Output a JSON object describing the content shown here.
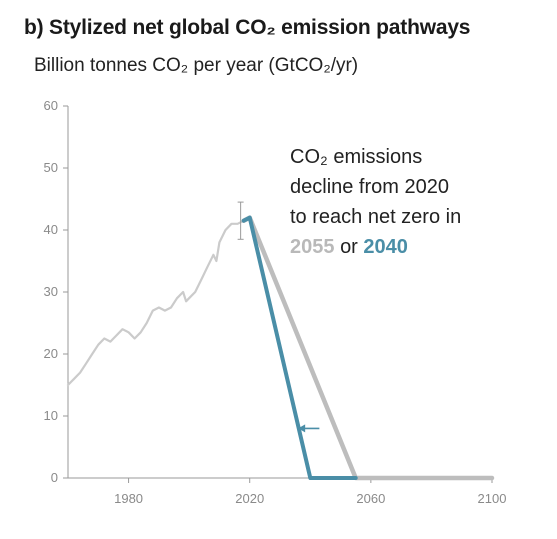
{
  "title": "b) Stylized net global CO₂ emission pathways",
  "subtitle": "Billion tonnes CO₂ per year (GtCO₂/yr)",
  "annotation": {
    "line1": "CO₂ emissions",
    "line2": "decline from 2020",
    "line3": "to reach net zero in",
    "year_a": "2055",
    "connector": "or",
    "year_b": "2040"
  },
  "colors": {
    "historical": "#cbcbcb",
    "pathway_2055": "#bdbdbd",
    "pathway_2040": "#4a8ea7",
    "axis": "#9a9a9a",
    "text": "#1a1a1a"
  },
  "chart_data": {
    "type": "line",
    "title": "b) Stylized net global CO₂ emission pathways",
    "ylabel": "Billion tonnes CO₂ per year (GtCO₂/yr)",
    "xlabel": "",
    "xlim": [
      1960,
      2100
    ],
    "ylim": [
      0,
      60
    ],
    "x_ticks": [
      1980,
      2020,
      2060,
      2100
    ],
    "y_ticks": [
      0,
      10,
      20,
      30,
      40,
      50,
      60
    ],
    "grid": false,
    "series": [
      {
        "key": "historical",
        "x": [
          1960,
          1962,
          1964,
          1966,
          1968,
          1970,
          1972,
          1974,
          1976,
          1978,
          1980,
          1982,
          1984,
          1986,
          1988,
          1990,
          1992,
          1994,
          1996,
          1998,
          1999,
          2000,
          2002,
          2004,
          2006,
          2008,
          2009,
          2010,
          2012,
          2014,
          2016,
          2018
        ],
        "values": [
          15,
          16,
          17,
          18.5,
          20,
          21.5,
          22.5,
          22,
          23,
          24,
          23.5,
          22.5,
          23.5,
          25,
          27,
          27.5,
          27,
          27.5,
          29,
          30,
          28.5,
          29,
          30,
          32,
          34,
          36,
          35,
          38,
          40,
          41,
          41,
          41.5
        ]
      },
      {
        "key": "pathway_2055",
        "x": [
          2018,
          2020,
          2055,
          2100
        ],
        "values": [
          41.5,
          42,
          0,
          0
        ]
      },
      {
        "key": "pathway_2040",
        "x": [
          2018,
          2020,
          2040,
          2055
        ],
        "values": [
          41.5,
          42,
          0,
          0
        ]
      }
    ],
    "error_bar": {
      "x": 2017,
      "value": 41.5,
      "low": 38.5,
      "high": 44.5
    },
    "arrow": {
      "from_x": 2043,
      "to_x": 2036,
      "y": 8
    }
  }
}
